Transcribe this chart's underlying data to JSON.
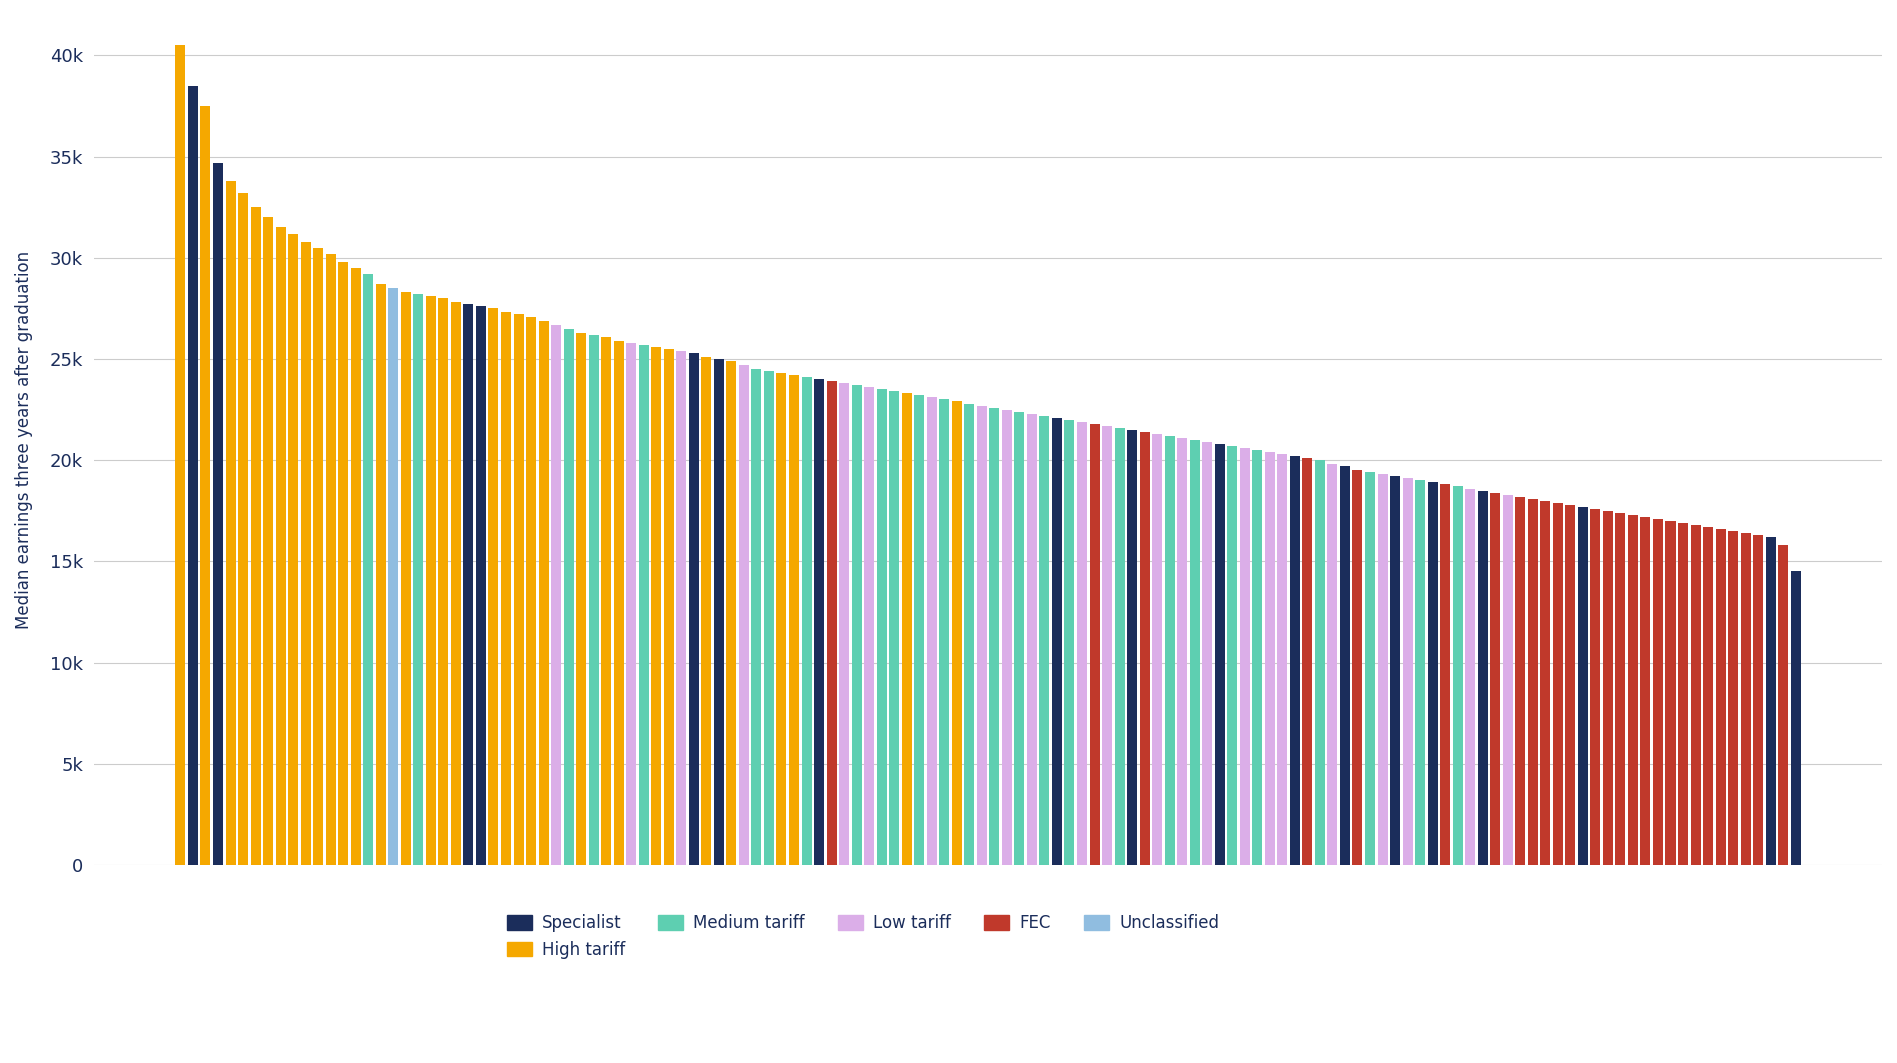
{
  "ylabel": "Median earnings three years after graduation",
  "ylim": [
    0,
    42000
  ],
  "yticks": [
    0,
    5000,
    10000,
    15000,
    20000,
    25000,
    30000,
    35000,
    40000
  ],
  "background_color": "#ffffff",
  "colors": {
    "Specialist": "#1b2d5b",
    "High tariff": "#f5a800",
    "Medium tariff": "#5ecfb1",
    "Low tariff": "#dbaee8",
    "FEC": "#c0392b",
    "Unclassified": "#90bde0"
  },
  "legend_order": [
    "Specialist",
    "High tariff",
    "Medium tariff",
    "Low tariff",
    "FEC",
    "Unclassified"
  ],
  "bars": [
    {
      "value": 40500,
      "category": "High tariff"
    },
    {
      "value": 38500,
      "category": "Specialist"
    },
    {
      "value": 37500,
      "category": "High tariff"
    },
    {
      "value": 34700,
      "category": "Specialist"
    },
    {
      "value": 33800,
      "category": "High tariff"
    },
    {
      "value": 33200,
      "category": "High tariff"
    },
    {
      "value": 32500,
      "category": "High tariff"
    },
    {
      "value": 32000,
      "category": "High tariff"
    },
    {
      "value": 31500,
      "category": "High tariff"
    },
    {
      "value": 31200,
      "category": "High tariff"
    },
    {
      "value": 30800,
      "category": "High tariff"
    },
    {
      "value": 30500,
      "category": "High tariff"
    },
    {
      "value": 30200,
      "category": "High tariff"
    },
    {
      "value": 29800,
      "category": "High tariff"
    },
    {
      "value": 29500,
      "category": "High tariff"
    },
    {
      "value": 29200,
      "category": "Medium tariff"
    },
    {
      "value": 28700,
      "category": "High tariff"
    },
    {
      "value": 28500,
      "category": "Unclassified"
    },
    {
      "value": 28300,
      "category": "High tariff"
    },
    {
      "value": 28200,
      "category": "Medium tariff"
    },
    {
      "value": 28100,
      "category": "High tariff"
    },
    {
      "value": 28000,
      "category": "High tariff"
    },
    {
      "value": 27800,
      "category": "High tariff"
    },
    {
      "value": 27700,
      "category": "Specialist"
    },
    {
      "value": 27600,
      "category": "Specialist"
    },
    {
      "value": 27500,
      "category": "High tariff"
    },
    {
      "value": 27300,
      "category": "High tariff"
    },
    {
      "value": 27200,
      "category": "High tariff"
    },
    {
      "value": 27100,
      "category": "High tariff"
    },
    {
      "value": 26900,
      "category": "High tariff"
    },
    {
      "value": 26700,
      "category": "Low tariff"
    },
    {
      "value": 26500,
      "category": "Medium tariff"
    },
    {
      "value": 26300,
      "category": "High tariff"
    },
    {
      "value": 26200,
      "category": "Medium tariff"
    },
    {
      "value": 26100,
      "category": "High tariff"
    },
    {
      "value": 25900,
      "category": "High tariff"
    },
    {
      "value": 25800,
      "category": "Low tariff"
    },
    {
      "value": 25700,
      "category": "Medium tariff"
    },
    {
      "value": 25600,
      "category": "High tariff"
    },
    {
      "value": 25500,
      "category": "High tariff"
    },
    {
      "value": 25400,
      "category": "Low tariff"
    },
    {
      "value": 25300,
      "category": "Specialist"
    },
    {
      "value": 25100,
      "category": "High tariff"
    },
    {
      "value": 25000,
      "category": "Specialist"
    },
    {
      "value": 24900,
      "category": "High tariff"
    },
    {
      "value": 24700,
      "category": "Low tariff"
    },
    {
      "value": 24500,
      "category": "Medium tariff"
    },
    {
      "value": 24400,
      "category": "Medium tariff"
    },
    {
      "value": 24300,
      "category": "High tariff"
    },
    {
      "value": 24200,
      "category": "High tariff"
    },
    {
      "value": 24100,
      "category": "Medium tariff"
    },
    {
      "value": 24000,
      "category": "Specialist"
    },
    {
      "value": 23900,
      "category": "FEC"
    },
    {
      "value": 23800,
      "category": "Low tariff"
    },
    {
      "value": 23700,
      "category": "Medium tariff"
    },
    {
      "value": 23600,
      "category": "Low tariff"
    },
    {
      "value": 23500,
      "category": "Medium tariff"
    },
    {
      "value": 23400,
      "category": "Medium tariff"
    },
    {
      "value": 23300,
      "category": "High tariff"
    },
    {
      "value": 23200,
      "category": "Medium tariff"
    },
    {
      "value": 23100,
      "category": "Low tariff"
    },
    {
      "value": 23000,
      "category": "Medium tariff"
    },
    {
      "value": 22900,
      "category": "High tariff"
    },
    {
      "value": 22800,
      "category": "Medium tariff"
    },
    {
      "value": 22700,
      "category": "Low tariff"
    },
    {
      "value": 22600,
      "category": "Medium tariff"
    },
    {
      "value": 22500,
      "category": "Low tariff"
    },
    {
      "value": 22400,
      "category": "Medium tariff"
    },
    {
      "value": 22300,
      "category": "Low tariff"
    },
    {
      "value": 22200,
      "category": "Medium tariff"
    },
    {
      "value": 22100,
      "category": "Specialist"
    },
    {
      "value": 22000,
      "category": "Medium tariff"
    },
    {
      "value": 21900,
      "category": "Low tariff"
    },
    {
      "value": 21800,
      "category": "FEC"
    },
    {
      "value": 21700,
      "category": "Low tariff"
    },
    {
      "value": 21600,
      "category": "Medium tariff"
    },
    {
      "value": 21500,
      "category": "Specialist"
    },
    {
      "value": 21400,
      "category": "FEC"
    },
    {
      "value": 21300,
      "category": "Low tariff"
    },
    {
      "value": 21200,
      "category": "Medium tariff"
    },
    {
      "value": 21100,
      "category": "Low tariff"
    },
    {
      "value": 21000,
      "category": "Medium tariff"
    },
    {
      "value": 20900,
      "category": "Low tariff"
    },
    {
      "value": 20800,
      "category": "Specialist"
    },
    {
      "value": 20700,
      "category": "Medium tariff"
    },
    {
      "value": 20600,
      "category": "Low tariff"
    },
    {
      "value": 20500,
      "category": "Medium tariff"
    },
    {
      "value": 20400,
      "category": "Low tariff"
    },
    {
      "value": 20300,
      "category": "Low tariff"
    },
    {
      "value": 20200,
      "category": "Specialist"
    },
    {
      "value": 20100,
      "category": "FEC"
    },
    {
      "value": 20000,
      "category": "Medium tariff"
    },
    {
      "value": 19800,
      "category": "Low tariff"
    },
    {
      "value": 19700,
      "category": "Specialist"
    },
    {
      "value": 19500,
      "category": "FEC"
    },
    {
      "value": 19400,
      "category": "Medium tariff"
    },
    {
      "value": 19300,
      "category": "Low tariff"
    },
    {
      "value": 19200,
      "category": "Specialist"
    },
    {
      "value": 19100,
      "category": "Low tariff"
    },
    {
      "value": 19000,
      "category": "Medium tariff"
    },
    {
      "value": 18900,
      "category": "Specialist"
    },
    {
      "value": 18800,
      "category": "FEC"
    },
    {
      "value": 18700,
      "category": "Medium tariff"
    },
    {
      "value": 18600,
      "category": "Low tariff"
    },
    {
      "value": 18500,
      "category": "Specialist"
    },
    {
      "value": 18400,
      "category": "FEC"
    },
    {
      "value": 18300,
      "category": "Low tariff"
    },
    {
      "value": 18200,
      "category": "FEC"
    },
    {
      "value": 18100,
      "category": "FEC"
    },
    {
      "value": 18000,
      "category": "FEC"
    },
    {
      "value": 17900,
      "category": "FEC"
    },
    {
      "value": 17800,
      "category": "FEC"
    },
    {
      "value": 17700,
      "category": "Specialist"
    },
    {
      "value": 17600,
      "category": "FEC"
    },
    {
      "value": 17500,
      "category": "FEC"
    },
    {
      "value": 17400,
      "category": "FEC"
    },
    {
      "value": 17300,
      "category": "FEC"
    },
    {
      "value": 17200,
      "category": "FEC"
    },
    {
      "value": 17100,
      "category": "FEC"
    },
    {
      "value": 17000,
      "category": "FEC"
    },
    {
      "value": 16900,
      "category": "FEC"
    },
    {
      "value": 16800,
      "category": "FEC"
    },
    {
      "value": 16700,
      "category": "FEC"
    },
    {
      "value": 16600,
      "category": "FEC"
    },
    {
      "value": 16500,
      "category": "FEC"
    },
    {
      "value": 16400,
      "category": "FEC"
    },
    {
      "value": 16300,
      "category": "FEC"
    },
    {
      "value": 16200,
      "category": "Specialist"
    },
    {
      "value": 15800,
      "category": "FEC"
    },
    {
      "value": 14500,
      "category": "Specialist"
    }
  ]
}
